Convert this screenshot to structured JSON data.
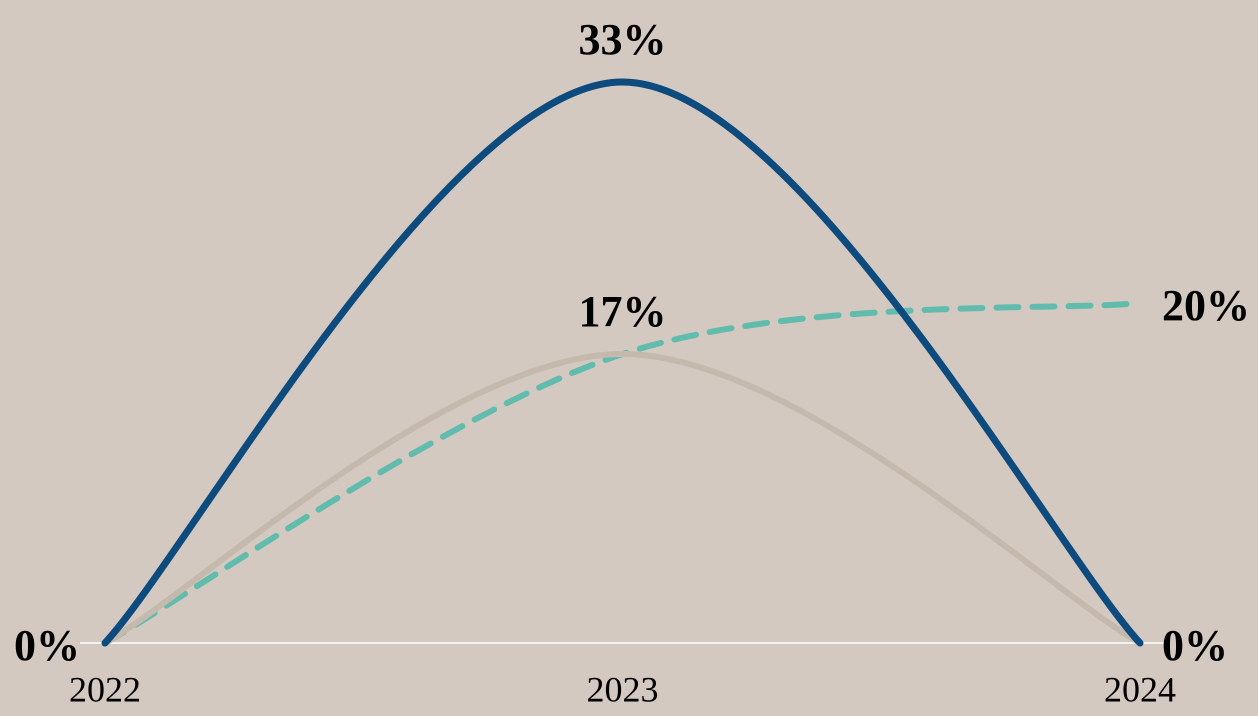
{
  "chart_data": {
    "type": "line",
    "categories": [
      "2022",
      "2023",
      "2024"
    ],
    "series": [
      {
        "color": "#0d4a7d",
        "dashed": false,
        "values": [
          0,
          33,
          0
        ],
        "value_labels": [
          "0%",
          "33%",
          "0%"
        ]
      },
      {
        "color": "#c5b9ad",
        "dashed": false,
        "values": [
          0,
          17,
          0
        ],
        "value_labels": [
          null,
          "17%",
          null
        ]
      },
      {
        "color": "#62bcad",
        "dashed": true,
        "values": [
          0,
          17,
          20
        ],
        "value_labels": [
          null,
          null,
          "20%"
        ]
      }
    ]
  }
}
